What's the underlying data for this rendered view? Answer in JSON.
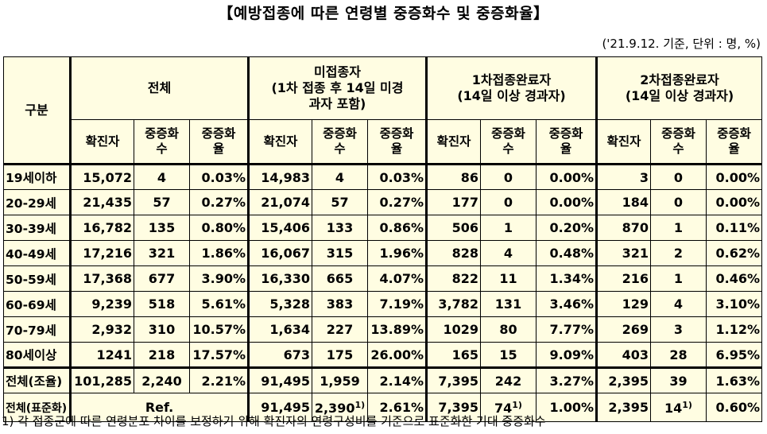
{
  "title": "【예방접종에 따른 연령별 중증화수 및 중증화율】",
  "unit_note": "('21.9.12. 기준, 단위 : 명, %)",
  "headers": {
    "category": "구분",
    "groups": [
      "전체",
      "미접종자\n(1차 접종 후 14일 미경\n과자 포함)",
      "1차접종완료자\n(14일 이상 경과자)",
      "2차접종완료자\n(14일 이상 경과자)"
    ],
    "sub": [
      "확진자",
      "중증화\n수",
      "중증화\n율"
    ]
  },
  "rows": [
    {
      "label": "19세이하",
      "values": [
        "15,072",
        "4",
        "0.03%",
        "14,983",
        "4",
        "0.03%",
        "86",
        "0",
        "0.00%",
        "3",
        "0",
        "0.00%"
      ]
    },
    {
      "label": "20-29세",
      "values": [
        "21,435",
        "57",
        "0.27%",
        "21,074",
        "57",
        "0.27%",
        "177",
        "0",
        "0.00%",
        "184",
        "0",
        "0.00%"
      ]
    },
    {
      "label": "30-39세",
      "values": [
        "16,782",
        "135",
        "0.80%",
        "15,406",
        "133",
        "0.86%",
        "506",
        "1",
        "0.20%",
        "870",
        "1",
        "0.11%"
      ]
    },
    {
      "label": "40-49세",
      "values": [
        "17,216",
        "321",
        "1.86%",
        "16,067",
        "315",
        "1.96%",
        "828",
        "4",
        "0.48%",
        "321",
        "2",
        "0.62%"
      ]
    },
    {
      "label": "50-59세",
      "values": [
        "17,368",
        "677",
        "3.90%",
        "16,330",
        "665",
        "4.07%",
        "822",
        "11",
        "1.34%",
        "216",
        "1",
        "0.46%"
      ]
    },
    {
      "label": "60-69세",
      "values": [
        "9,239",
        "518",
        "5.61%",
        "5,328",
        "383",
        "7.19%",
        "3,782",
        "131",
        "3.46%",
        "129",
        "4",
        "3.10%"
      ]
    },
    {
      "label": "70-79세",
      "values": [
        "2,932",
        "310",
        "10.57%",
        "1,634",
        "227",
        "13.89%",
        "1029",
        "80",
        "7.77%",
        "269",
        "3",
        "1.12%"
      ]
    },
    {
      "label": "80세이상",
      "values": [
        "1241",
        "218",
        "17.57%",
        "673",
        "175",
        "26.00%",
        "165",
        "15",
        "9.09%",
        "403",
        "28",
        "6.95%"
      ]
    },
    {
      "label": "전체(조율)",
      "values": [
        "101,285",
        "2,240",
        "2.21%",
        "91,495",
        "1,959",
        "2.14%",
        "7,395",
        "242",
        "3.27%",
        "2,395",
        "39",
        "1.63%"
      ]
    }
  ],
  "std_row": {
    "label": "전체(표준화)",
    "ref": "Ref.",
    "values": [
      "91,495",
      "2,390",
      "2.61%",
      "7,395",
      "74",
      "1.00%",
      "2,395",
      "14",
      "0.60%"
    ],
    "footnote_mark": "1)"
  },
  "footnote": "1) 각 접종군에 따른 연령분포 차이를 보정하기 위해 확진자의 연령구성비를 기준으로 표준화한 기대 중증화수"
}
